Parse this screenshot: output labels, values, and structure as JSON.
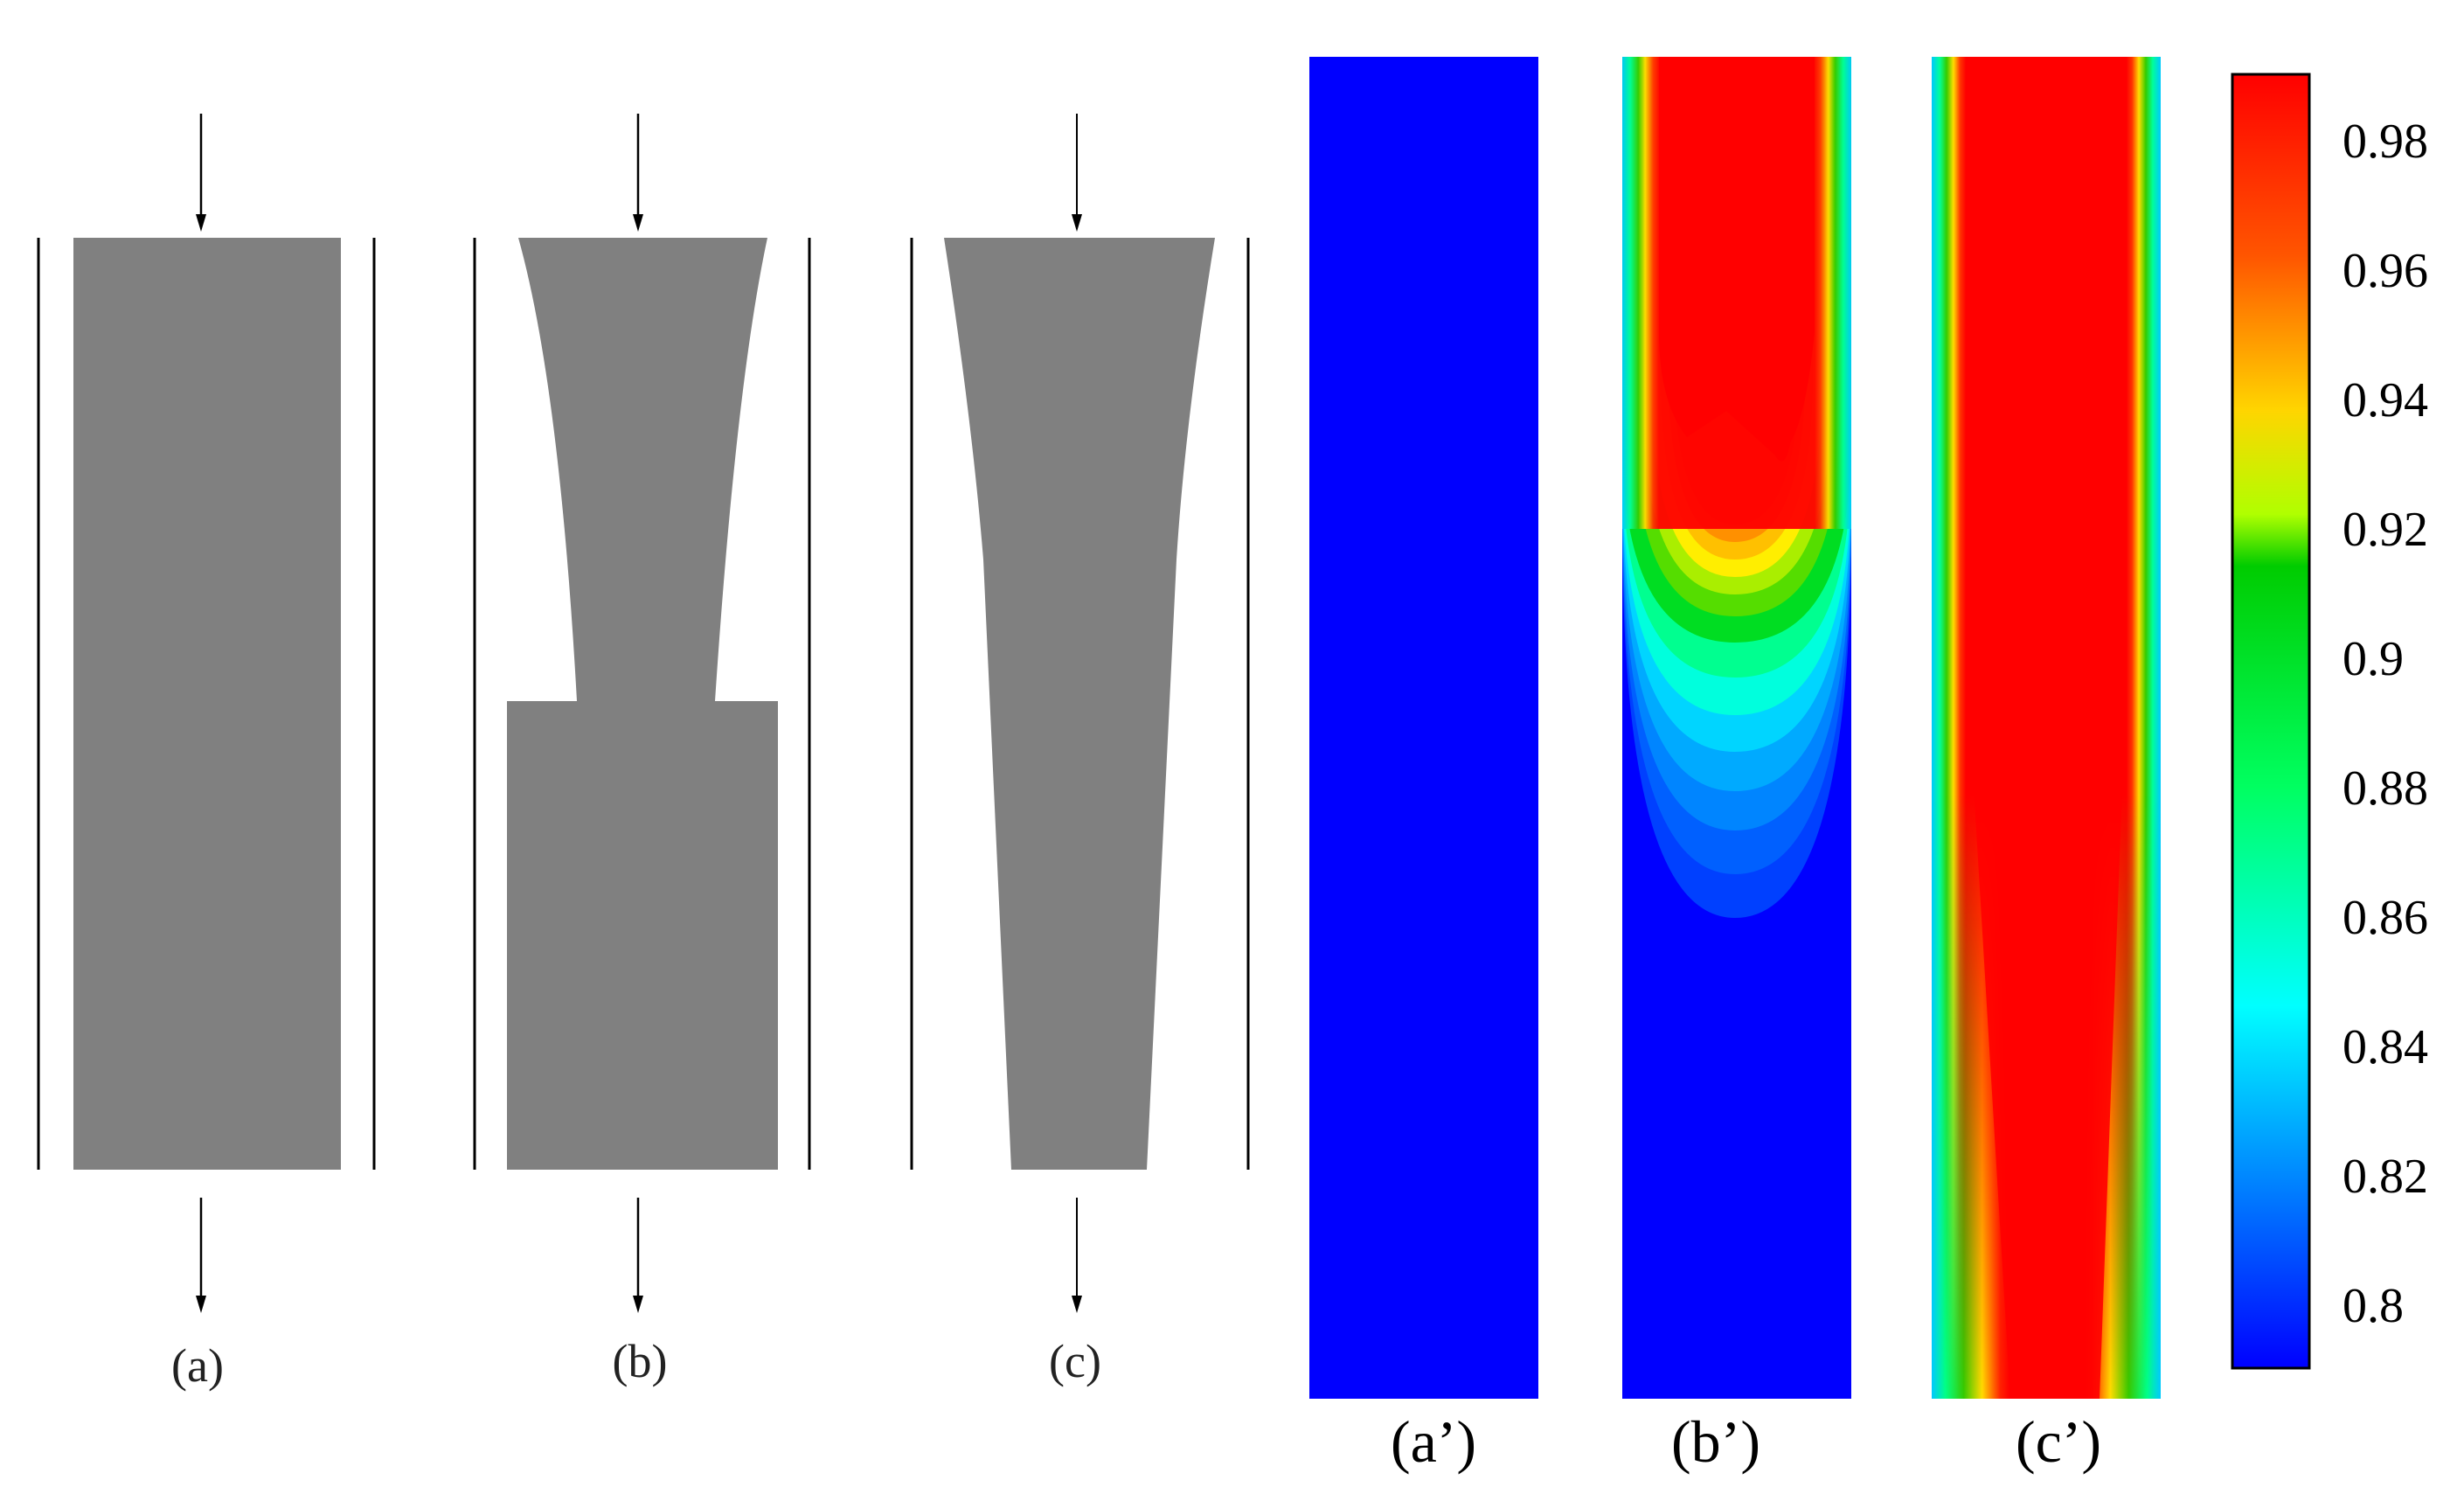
{
  "geometry_labels": [
    "(a)",
    "(b)",
    "(c)"
  ],
  "contour_labels": [
    "(a’)",
    "(b’)",
    "(c’)"
  ],
  "colorbar": {
    "ticks": [
      "0.98",
      "0.96",
      "0.94",
      "0.92",
      "0.9",
      "0.88",
      "0.86",
      "0.84",
      "0.82",
      "0.8"
    ],
    "colors": [
      "#ee0000",
      "#ff6a00",
      "#ffd500",
      "#a8ff00",
      "#00dd00",
      "#00ff80",
      "#00ffff",
      "#0088ff",
      "#0000ff"
    ]
  },
  "colors": {
    "insert": "#808080",
    "wall": "#000000",
    "low": "#0000ff",
    "high": "#ff0000"
  }
}
